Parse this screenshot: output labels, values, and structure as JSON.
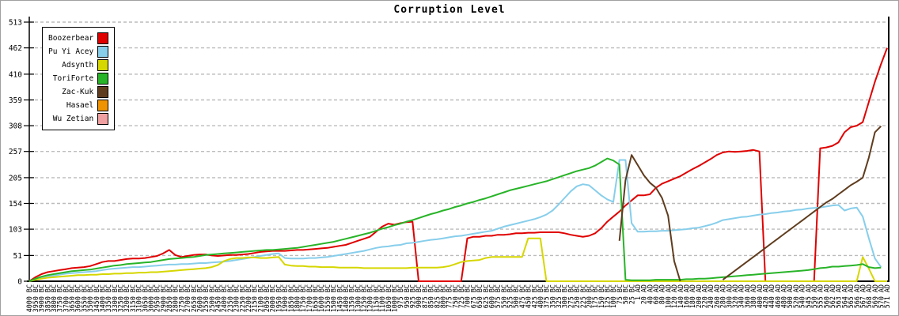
{
  "title": "Corruption Level",
  "chart_data": {
    "type": "line",
    "title": "Corruption Level",
    "ylabel": "",
    "xlabel": "",
    "ylim": [
      0,
      513
    ],
    "y_ticks": [
      0,
      51,
      103,
      154,
      205,
      257,
      308,
      359,
      410,
      462,
      513
    ],
    "grid": "horizontal-dashed",
    "legend_position": "top-left",
    "x_labels": [
      "4000 BC",
      "3950 BC",
      "3900 BC",
      "3850 BC",
      "3800 BC",
      "3750 BC",
      "3700 BC",
      "3650 BC",
      "3600 BC",
      "3550 BC",
      "3500 BC",
      "3450 BC",
      "3400 BC",
      "3350 BC",
      "3300 BC",
      "3250 BC",
      "3200 BC",
      "3150 BC",
      "3100 BC",
      "3050 BC",
      "3000 BC",
      "2950 BC",
      "2900 BC",
      "2850 BC",
      "2800 BC",
      "2750 BC",
      "2700 BC",
      "2650 BC",
      "2600 BC",
      "2550 BC",
      "2500 BC",
      "2450 BC",
      "2400 BC",
      "2350 BC",
      "2300 BC",
      "2250 BC",
      "2200 BC",
      "2150 BC",
      "2100 BC",
      "2050 BC",
      "2000 BC",
      "1950 BC",
      "1900 BC",
      "1850 BC",
      "1800 BC",
      "1750 BC",
      "1700 BC",
      "1650 BC",
      "1600 BC",
      "1550 BC",
      "1500 BC",
      "1450 BC",
      "1400 BC",
      "1350 BC",
      "1300 BC",
      "1250 BC",
      "1200 BC",
      "1150 BC",
      "1100 BC",
      "1050 BC",
      "1000 BC",
      "975 BC",
      "950 BC",
      "925 BC",
      "900 BC",
      "875 BC",
      "850 BC",
      "825 BC",
      "800 BC",
      "775 BC",
      "750 BC",
      "725 BC",
      "700 BC",
      "675 BC",
      "650 BC",
      "625 BC",
      "600 BC",
      "575 BC",
      "550 BC",
      "525 BC",
      "500 BC",
      "475 BC",
      "450 BC",
      "425 BC",
      "400 BC",
      "375 BC",
      "350 BC",
      "325 BC",
      "300 BC",
      "275 BC",
      "250 BC",
      "225 BC",
      "200 BC",
      "175 BC",
      "150 BC",
      "125 BC",
      "100 BC",
      "75 BC",
      "50 BC",
      "25 BC",
      "1 AD",
      "20 AD",
      "40 AD",
      "60 AD",
      "80 AD",
      "100 AD",
      "120 AD",
      "140 AD",
      "160 AD",
      "180 AD",
      "200 AD",
      "220 AD",
      "240 AD",
      "260 AD",
      "280 AD",
      "300 AD",
      "320 AD",
      "340 AD",
      "360 AD",
      "380 AD",
      "400 AD",
      "420 AD",
      "440 AD",
      "460 AD",
      "480 AD",
      "500 AD",
      "520 AD",
      "540 AD",
      "545 AD",
      "550 AD",
      "555 AD",
      "560 AD",
      "562 AD",
      "563 AD",
      "564 AD",
      "565 AD",
      "566 AD",
      "567 AD",
      "568 AD",
      "569 AD",
      "570 AD",
      "571 AD"
    ],
    "series": [
      {
        "name": "Boozerbear",
        "color": "#e00000",
        "values": [
          0,
          8,
          14,
          18,
          20,
          22,
          24,
          26,
          27,
          28,
          30,
          34,
          38,
          40,
          40,
          42,
          44,
          45,
          45,
          46,
          48,
          50,
          55,
          62,
          52,
          48,
          50,
          52,
          53,
          53,
          51,
          50,
          51,
          52,
          52,
          53,
          54,
          56,
          58,
          59,
          60,
          60,
          60,
          61,
          62,
          62,
          63,
          64,
          65,
          66,
          68,
          70,
          72,
          76,
          80,
          84,
          88,
          98,
          108,
          114,
          112,
          115,
          117,
          118,
          0,
          0,
          0,
          0,
          0,
          0,
          0,
          0,
          85,
          88,
          88,
          90,
          90,
          92,
          92,
          93,
          95,
          95,
          96,
          96,
          97,
          97,
          97,
          97,
          95,
          92,
          90,
          88,
          90,
          95,
          105,
          118,
          128,
          138,
          150,
          160,
          170,
          170,
          172,
          185,
          193,
          198,
          203,
          208,
          215,
          222,
          228,
          235,
          242,
          250,
          255,
          257,
          256,
          257,
          258,
          260,
          257,
          0,
          0,
          0,
          0,
          0,
          0,
          0,
          0,
          0,
          263,
          265,
          268,
          275,
          295,
          305,
          308,
          315,
          355,
          395,
          430,
          462
        ]
      },
      {
        "name": "Pu Yi Acey",
        "color": "#87ceeb",
        "values": [
          0,
          4,
          7,
          9,
          11,
          13,
          15,
          16,
          17,
          18,
          19,
          20,
          22,
          24,
          25,
          26,
          27,
          28,
          28,
          29,
          30,
          31,
          32,
          33,
          33,
          34,
          34,
          35,
          36,
          36,
          37,
          38,
          39,
          40,
          42,
          44,
          46,
          48,
          50,
          52,
          54,
          55,
          46,
          45,
          45,
          45,
          46,
          46,
          47,
          48,
          50,
          52,
          54,
          56,
          58,
          60,
          63,
          66,
          68,
          69,
          71,
          72,
          75,
          76,
          78,
          80,
          82,
          83,
          85,
          87,
          89,
          90,
          92,
          94,
          96,
          98,
          100,
          104,
          108,
          111,
          114,
          117,
          120,
          123,
          127,
          132,
          140,
          152,
          165,
          178,
          188,
          192,
          190,
          180,
          170,
          162,
          157,
          240,
          240,
          115,
          98,
          98,
          99,
          99,
          100,
          100,
          101,
          102,
          103,
          105,
          106,
          109,
          112,
          116,
          121,
          123,
          125,
          127,
          128,
          130,
          132,
          133,
          135,
          136,
          138,
          139,
          141,
          142,
          144,
          145,
          146,
          148,
          150,
          151,
          140,
          144,
          146,
          128,
          85,
          45,
          28,
          null
        ]
      },
      {
        "name": "Adsynth",
        "color": "#d6d600",
        "values": [
          0,
          3,
          5,
          7,
          8,
          9,
          10,
          11,
          12,
          12,
          13,
          13,
          14,
          14,
          15,
          15,
          16,
          16,
          17,
          17,
          18,
          18,
          19,
          20,
          21,
          22,
          23,
          24,
          25,
          26,
          28,
          32,
          40,
          44,
          46,
          46,
          47,
          47,
          46,
          46,
          47,
          48,
          33,
          31,
          30,
          30,
          29,
          29,
          28,
          28,
          28,
          27,
          27,
          27,
          27,
          26,
          26,
          26,
          26,
          26,
          26,
          26,
          26,
          27,
          27,
          27,
          27,
          27,
          28,
          30,
          34,
          38,
          40,
          41,
          42,
          46,
          48,
          48,
          48,
          48,
          48,
          48,
          85,
          85,
          85,
          0,
          0,
          0,
          0,
          0,
          0,
          0,
          0,
          0,
          0,
          0,
          0,
          0,
          0,
          0,
          0,
          0,
          0,
          0,
          0,
          0,
          0,
          0,
          0,
          0,
          0,
          0,
          0,
          0,
          0,
          0,
          0,
          0,
          0,
          0,
          0,
          0,
          0,
          0,
          0,
          0,
          0,
          0,
          0,
          0,
          0,
          0,
          0,
          0,
          0,
          0,
          0,
          48,
          25,
          0,
          0,
          0
        ]
      },
      {
        "name": "ToriForte",
        "color": "#28b428",
        "values": [
          0,
          5,
          9,
          12,
          14,
          16,
          18,
          20,
          21,
          22,
          23,
          25,
          27,
          29,
          31,
          32,
          34,
          35,
          36,
          37,
          38,
          40,
          42,
          44,
          45,
          46,
          47,
          48,
          50,
          52,
          53,
          54,
          55,
          56,
          57,
          58,
          59,
          60,
          61,
          62,
          62,
          63,
          64,
          65,
          66,
          68,
          70,
          72,
          74,
          76,
          78,
          81,
          84,
          87,
          90,
          93,
          96,
          100,
          104,
          107,
          111,
          114,
          118,
          121,
          125,
          129,
          133,
          136,
          140,
          143,
          147,
          150,
          154,
          157,
          161,
          164,
          168,
          172,
          176,
          180,
          183,
          186,
          189,
          192,
          195,
          198,
          202,
          206,
          210,
          214,
          218,
          221,
          224,
          229,
          236,
          243,
          239,
          231,
          3,
          2,
          2,
          2,
          2,
          3,
          3,
          3,
          3,
          3,
          4,
          4,
          5,
          5,
          6,
          7,
          8,
          9,
          10,
          11,
          12,
          13,
          14,
          15,
          16,
          17,
          18,
          19,
          20,
          21,
          22,
          24,
          26,
          27,
          29,
          29,
          30,
          31,
          32,
          34,
          28,
          26,
          27,
          null
        ]
      },
      {
        "name": "Zac-Kuk",
        "color": "#5f3c1e",
        "values": [
          null,
          null,
          null,
          null,
          null,
          null,
          null,
          null,
          null,
          null,
          null,
          null,
          null,
          null,
          null,
          null,
          null,
          null,
          null,
          null,
          null,
          null,
          null,
          null,
          null,
          null,
          null,
          null,
          null,
          null,
          null,
          null,
          null,
          null,
          null,
          null,
          null,
          null,
          null,
          null,
          null,
          null,
          null,
          null,
          null,
          null,
          null,
          null,
          null,
          null,
          null,
          null,
          null,
          null,
          null,
          null,
          null,
          null,
          null,
          null,
          null,
          null,
          null,
          null,
          null,
          null,
          null,
          null,
          null,
          null,
          null,
          null,
          null,
          null,
          null,
          null,
          null,
          null,
          null,
          null,
          null,
          null,
          null,
          null,
          null,
          null,
          null,
          null,
          null,
          null,
          null,
          null,
          null,
          null,
          null,
          null,
          null,
          80,
          200,
          250,
          230,
          210,
          195,
          185,
          165,
          130,
          40,
          0,
          null,
          null,
          null,
          null,
          null,
          null,
          3,
          12,
          21,
          30,
          39,
          48,
          57,
          66,
          75,
          84,
          93,
          102,
          111,
          120,
          129,
          138,
          147,
          156,
          163,
          172,
          181,
          190,
          197,
          205,
          245,
          295,
          307,
          null
        ]
      },
      {
        "name": "Hasael",
        "color": "#ef9400",
        "line_visible": false,
        "values": []
      },
      {
        "name": "Wu Zetian",
        "color": "#f0a0a0",
        "line_visible": false,
        "values": []
      }
    ]
  }
}
